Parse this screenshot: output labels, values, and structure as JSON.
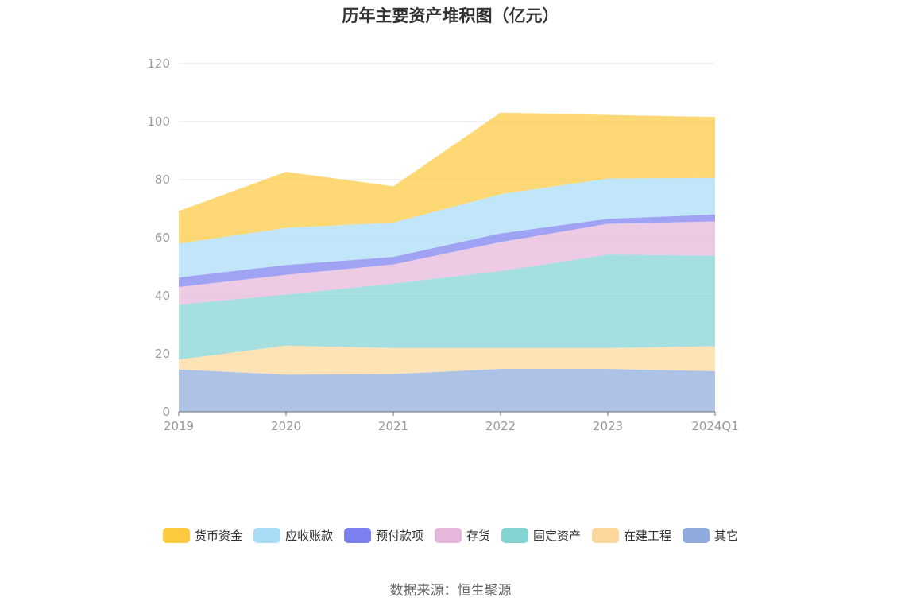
{
  "chart_data": {
    "type": "area",
    "stacked": true,
    "title": "历年主要资产堆积图（亿元）",
    "categories": [
      "2019",
      "2020",
      "2021",
      "2022",
      "2023",
      "2024Q1"
    ],
    "ylim": [
      0,
      120
    ],
    "yticks": [
      0,
      20,
      40,
      60,
      80,
      100,
      120
    ],
    "grid": true,
    "legend_position": "bottom",
    "series": [
      {
        "name": "其它",
        "color": "#8faadc",
        "values": [
          14.6,
          12.8,
          13.0,
          14.8,
          14.8,
          14.0
        ]
      },
      {
        "name": "在建工程",
        "color": "#fdd89a",
        "values": [
          3.4,
          10.0,
          9.0,
          7.2,
          7.2,
          8.6
        ]
      },
      {
        "name": "固定资产",
        "color": "#83d3d3",
        "values": [
          19.0,
          17.6,
          22.2,
          26.5,
          32.2,
          31.2
        ]
      },
      {
        "name": "存货",
        "color": "#e6b7da",
        "values": [
          6.0,
          6.8,
          6.6,
          10.0,
          10.6,
          11.8
        ]
      },
      {
        "name": "预付款项",
        "color": "#7b7ff0",
        "values": [
          3.3,
          3.4,
          2.6,
          3.0,
          1.7,
          2.4
        ]
      },
      {
        "name": "应收账款",
        "color": "#a9dcf7",
        "values": [
          11.7,
          12.8,
          11.8,
          13.5,
          13.9,
          12.6
        ]
      },
      {
        "name": "货币资金",
        "color": "#fcc93f",
        "values": [
          11.2,
          19.3,
          12.5,
          28.1,
          21.9,
          21.0
        ]
      }
    ]
  },
  "legend": [
    {
      "label": "货币资金",
      "color": "#fcc93f"
    },
    {
      "label": "应收账款",
      "color": "#a9dcf7"
    },
    {
      "label": "预付款项",
      "color": "#7b7ff0"
    },
    {
      "label": "存货",
      "color": "#e6b7da"
    },
    {
      "label": "固定资产",
      "color": "#83d3d3"
    },
    {
      "label": "在建工程",
      "color": "#fdd89a"
    },
    {
      "label": "其它",
      "color": "#8faadc"
    }
  ],
  "source": "数据来源：恒生聚源"
}
